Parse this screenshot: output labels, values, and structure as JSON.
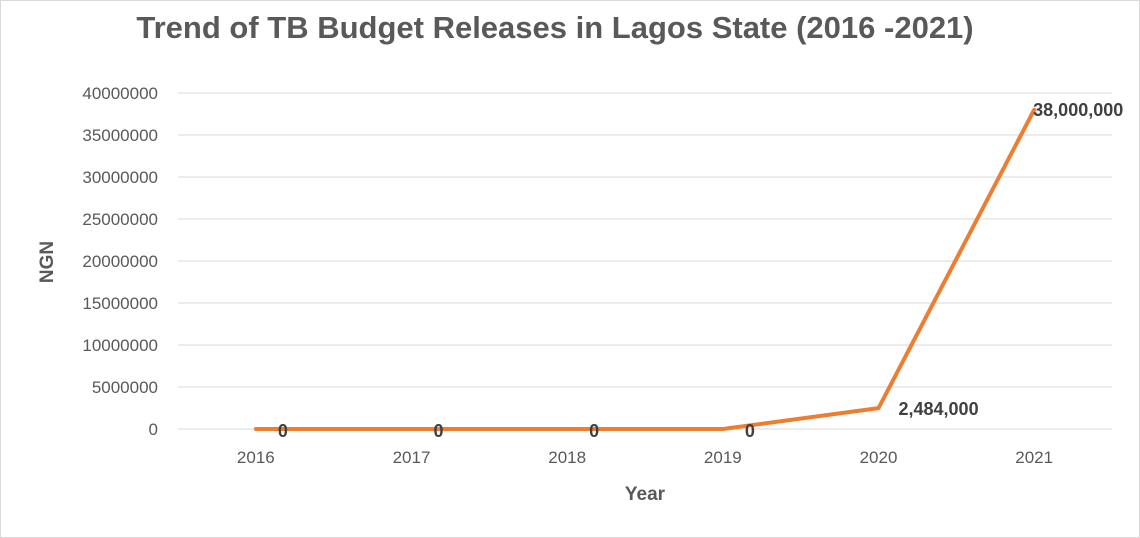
{
  "chart_data": {
    "type": "line",
    "title": "Trend of TB Budget Releases in Lagos State (2016 -2021)",
    "xlabel": "Year",
    "ylabel": "NGN",
    "categories": [
      "2016",
      "2017",
      "2018",
      "2019",
      "2020",
      "2021"
    ],
    "series": [
      {
        "values": [
          0,
          0,
          0,
          0,
          2484000,
          38000000
        ],
        "data_labels": [
          "0",
          "0",
          "0",
          "0",
          "2,484,000",
          "38,000,000"
        ],
        "color": "#ED7D31"
      }
    ],
    "ylim": [
      0,
      40000000
    ],
    "yticks": [
      "0",
      "5000000",
      "10000000",
      "15000000",
      "20000000",
      "25000000",
      "30000000",
      "35000000",
      "40000000"
    ],
    "grid": true,
    "legend": "none"
  }
}
